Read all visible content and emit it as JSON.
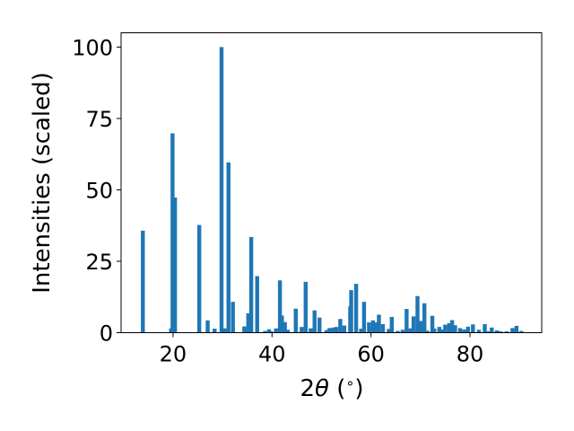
{
  "chart_data": {
    "type": "bar",
    "xlabel_parts": [
      "2",
      "θ",
      " (",
      "∘",
      ")"
    ],
    "ylabel": "Intensities (scaled)",
    "xlim": [
      9.5,
      94.5
    ],
    "ylim": [
      0,
      105
    ],
    "x_ticks": [
      20,
      40,
      60,
      80
    ],
    "y_ticks": [
      0,
      25,
      50,
      75,
      100
    ],
    "bar_color": "#1f77b4",
    "grid": false,
    "bar_width": 0.8,
    "x": [
      13.9,
      19.6,
      19.9,
      20.4,
      25.3,
      27.0,
      28.4,
      29.8,
      30.4,
      31.2,
      32.1,
      34.4,
      35.2,
      35.8,
      37.0,
      38.6,
      39.4,
      39.8,
      40.8,
      41.6,
      42.0,
      42.6,
      43.2,
      44.8,
      46.0,
      46.8,
      47.8,
      48.6,
      49.6,
      51.0,
      51.6,
      52.4,
      53.0,
      53.8,
      54.6,
      55.8,
      56.0,
      57.0,
      58.0,
      58.6,
      59.6,
      60.4,
      61.0,
      61.6,
      62.4,
      63.6,
      64.2,
      65.4,
      66.4,
      67.2,
      68.0,
      68.6,
      69.4,
      70.0,
      70.8,
      71.4,
      72.4,
      72.8,
      73.8,
      74.4,
      75.0,
      75.8,
      76.4,
      77.0,
      78.0,
      78.8,
      79.6,
      80.6,
      81.8,
      83.0,
      83.6,
      84.4,
      85.4,
      86.2,
      87.4,
      88.6,
      89.4,
      90.4
    ],
    "y": [
      35.7,
      1.5,
      69.8,
      47.3,
      37.7,
      4.3,
      1.4,
      100.0,
      1.5,
      59.6,
      10.8,
      2.2,
      6.8,
      33.5,
      19.8,
      0.6,
      1.2,
      0.5,
      1.5,
      18.3,
      6.0,
      3.7,
      1.0,
      8.4,
      2.0,
      17.8,
      1.5,
      7.8,
      5.3,
      0.9,
      1.6,
      1.8,
      2.0,
      4.8,
      2.5,
      9.2,
      14.9,
      17.1,
      1.4,
      10.8,
      3.6,
      4.3,
      3.6,
      6.3,
      3.0,
      1.3,
      5.5,
      0.6,
      1.0,
      8.3,
      1.5,
      5.7,
      12.8,
      4.1,
      10.3,
      0.7,
      5.9,
      1.4,
      2.0,
      1.1,
      2.8,
      3.3,
      4.4,
      2.6,
      1.6,
      1.1,
      2.1,
      2.9,
      1.0,
      3.0,
      0.5,
      1.8,
      0.8,
      0.5,
      0.5,
      1.6,
      2.4,
      0.6
    ]
  }
}
